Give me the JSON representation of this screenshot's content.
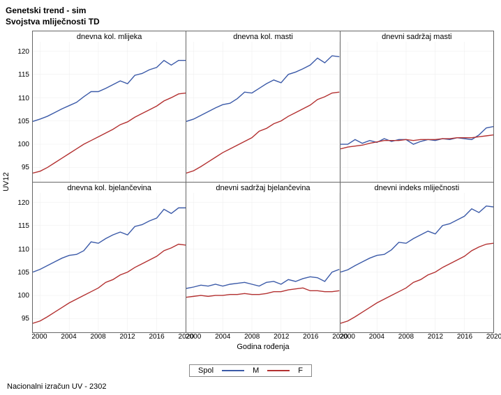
{
  "title_line1": "Genetski trend - sim",
  "title_line2": "Svojstva mliječnosti TD",
  "y_axis_label": "UV12",
  "x_axis_label": "Godina rođenja",
  "footer": "Nacionalni izračun UV - 2302",
  "legend_title": "Spol",
  "series_colors": {
    "M": "#3b5aa8",
    "F": "#b33030"
  },
  "series_labels": {
    "M": "M",
    "F": "F"
  },
  "y_ticks": [
    95,
    100,
    105,
    110,
    115,
    120
  ],
  "y_lim": [
    92,
    122
  ],
  "x_values": [
    1999,
    2000,
    2001,
    2002,
    2003,
    2004,
    2005,
    2006,
    2007,
    2008,
    2009,
    2010,
    2011,
    2012,
    2013,
    2014,
    2015,
    2016,
    2017,
    2018,
    2019,
    2020
  ],
  "x_ticks": [
    2000,
    2004,
    2008,
    2012,
    2016,
    2020
  ],
  "panels": [
    {
      "key": "mlijeka",
      "title": "dnevna kol. mlijeka",
      "M": [
        104.9,
        105.4,
        106.0,
        106.8,
        107.6,
        108.3,
        109.0,
        110.2,
        111.3,
        111.3,
        112.0,
        112.8,
        113.6,
        113.0,
        114.8,
        115.2,
        116.0,
        116.5,
        118.0,
        117.0,
        118.0,
        118.0
      ],
      "F": [
        93.8,
        94.2,
        95.0,
        96.0,
        97.0,
        98.0,
        99.0,
        100.0,
        100.8,
        101.6,
        102.4,
        103.2,
        104.2,
        104.8,
        105.8,
        106.6,
        107.4,
        108.2,
        109.3,
        110.0,
        110.8,
        111.0
      ]
    },
    {
      "key": "masti",
      "title": "dnevna kol. masti",
      "M": [
        104.9,
        105.4,
        106.2,
        107.0,
        107.8,
        108.5,
        108.8,
        109.8,
        111.2,
        111.0,
        112.0,
        113.0,
        113.8,
        113.2,
        115.0,
        115.5,
        116.2,
        117.0,
        118.5,
        117.5,
        119.0,
        118.8
      ],
      "F": [
        93.8,
        94.3,
        95.2,
        96.2,
        97.2,
        98.2,
        99.0,
        99.8,
        100.6,
        101.4,
        102.8,
        103.4,
        104.4,
        105.0,
        106.0,
        106.8,
        107.6,
        108.4,
        109.6,
        110.2,
        111.0,
        111.2
      ]
    },
    {
      "key": "sadrzaj_masti",
      "title": "dnevni sadržaj masti",
      "M": [
        100.0,
        100.0,
        101.0,
        100.2,
        100.8,
        100.4,
        101.2,
        100.6,
        101.0,
        101.0,
        100.0,
        100.6,
        101.0,
        100.8,
        101.2,
        101.0,
        101.4,
        101.2,
        101.0,
        102.0,
        103.5,
        103.8
      ],
      "F": [
        99.0,
        99.4,
        99.6,
        99.8,
        100.2,
        100.5,
        100.8,
        100.8,
        100.8,
        101.0,
        100.8,
        101.0,
        101.0,
        101.0,
        101.2,
        101.2,
        101.4,
        101.4,
        101.4,
        101.6,
        101.8,
        102.0
      ]
    },
    {
      "key": "bjelancevina",
      "title": "dnevna kol. bjelančevina",
      "M": [
        105.0,
        105.6,
        106.4,
        107.2,
        108.0,
        108.6,
        108.8,
        109.6,
        111.5,
        111.2,
        112.2,
        113.0,
        113.6,
        113.0,
        114.8,
        115.2,
        116.0,
        116.6,
        118.5,
        117.6,
        118.8,
        118.8
      ],
      "F": [
        94.0,
        94.5,
        95.4,
        96.4,
        97.4,
        98.4,
        99.2,
        100.0,
        100.8,
        101.6,
        102.8,
        103.4,
        104.4,
        105.0,
        106.0,
        106.8,
        107.6,
        108.4,
        109.6,
        110.2,
        111.0,
        110.8
      ]
    },
    {
      "key": "sadrzaj_bjelan",
      "title": "dnevni sadržaj bjelančevina",
      "M": [
        101.5,
        101.8,
        102.2,
        102.0,
        102.4,
        102.0,
        102.4,
        102.6,
        102.8,
        102.4,
        102.0,
        102.8,
        103.0,
        102.4,
        103.4,
        103.0,
        103.6,
        104.0,
        103.8,
        103.0,
        105.0,
        105.6
      ],
      "F": [
        99.6,
        99.8,
        100.0,
        99.8,
        100.0,
        100.0,
        100.2,
        100.2,
        100.4,
        100.2,
        100.2,
        100.4,
        100.8,
        100.8,
        101.2,
        101.4,
        101.6,
        101.0,
        101.0,
        100.8,
        100.8,
        101.0
      ]
    },
    {
      "key": "indeks",
      "title": "dnevni indeks mliječnosti",
      "M": [
        105.0,
        105.5,
        106.4,
        107.2,
        108.0,
        108.6,
        108.8,
        109.8,
        111.4,
        111.2,
        112.2,
        113.0,
        113.8,
        113.2,
        115.0,
        115.4,
        116.2,
        117.0,
        118.6,
        117.8,
        119.2,
        119.0
      ],
      "F": [
        94.0,
        94.5,
        95.4,
        96.4,
        97.4,
        98.4,
        99.2,
        100.0,
        100.8,
        101.6,
        102.8,
        103.4,
        104.4,
        105.0,
        106.0,
        106.8,
        107.6,
        108.4,
        109.6,
        110.4,
        111.0,
        111.2
      ]
    }
  ],
  "grid_color": "#e8e8e8",
  "axis_fontsize": 10,
  "title_fontsize": 12,
  "panel_title_fontsize": 11,
  "line_width": 1.4
}
